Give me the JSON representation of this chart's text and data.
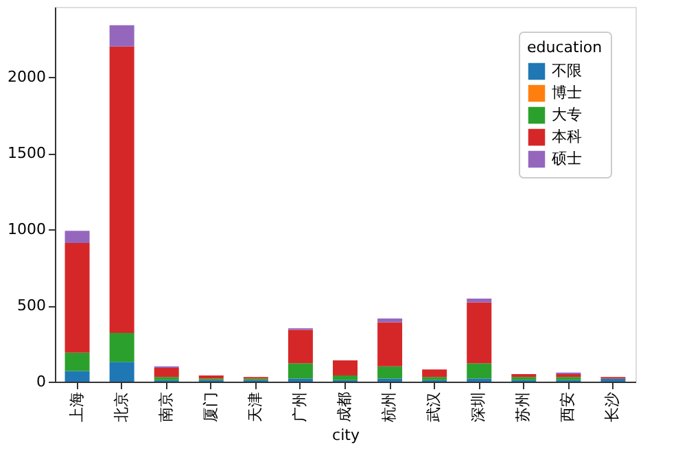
{
  "chart_data": {
    "type": "bar",
    "stacked": true,
    "xlabel": "city",
    "legend_title": "education",
    "legend": "top right",
    "grid": false,
    "categories": [
      "上海",
      "北京",
      "南京",
      "厦门",
      "天津",
      "广州",
      "成都",
      "杭州",
      "武汉",
      "深圳",
      "苏州",
      "西安",
      "长沙"
    ],
    "ylim": [
      0,
      2460
    ],
    "yticks": [
      0,
      500,
      1000,
      1500,
      2000
    ],
    "series": [
      {
        "name": "不限",
        "color": "#1f77b4",
        "values": [
          70,
          130,
          10,
          10,
          10,
          20,
          10,
          20,
          10,
          20,
          10,
          10,
          20
        ]
      },
      {
        "name": "博士",
        "color": "#ff7f0e",
        "values": [
          0,
          0,
          0,
          0,
          0,
          0,
          0,
          0,
          0,
          0,
          0,
          0,
          0
        ]
      },
      {
        "name": "大专",
        "color": "#2ca02c",
        "values": [
          120,
          190,
          20,
          10,
          10,
          100,
          30,
          80,
          20,
          100,
          20,
          20,
          0
        ]
      },
      {
        "name": "本科",
        "color": "#d62728",
        "values": [
          720,
          1880,
          60,
          20,
          10,
          220,
          100,
          290,
          50,
          400,
          20,
          20,
          10
        ]
      },
      {
        "name": "硕士",
        "color": "#9467bd",
        "values": [
          80,
          140,
          10,
          0,
          0,
          10,
          0,
          25,
          0,
          25,
          0,
          10,
          0
        ]
      }
    ]
  }
}
